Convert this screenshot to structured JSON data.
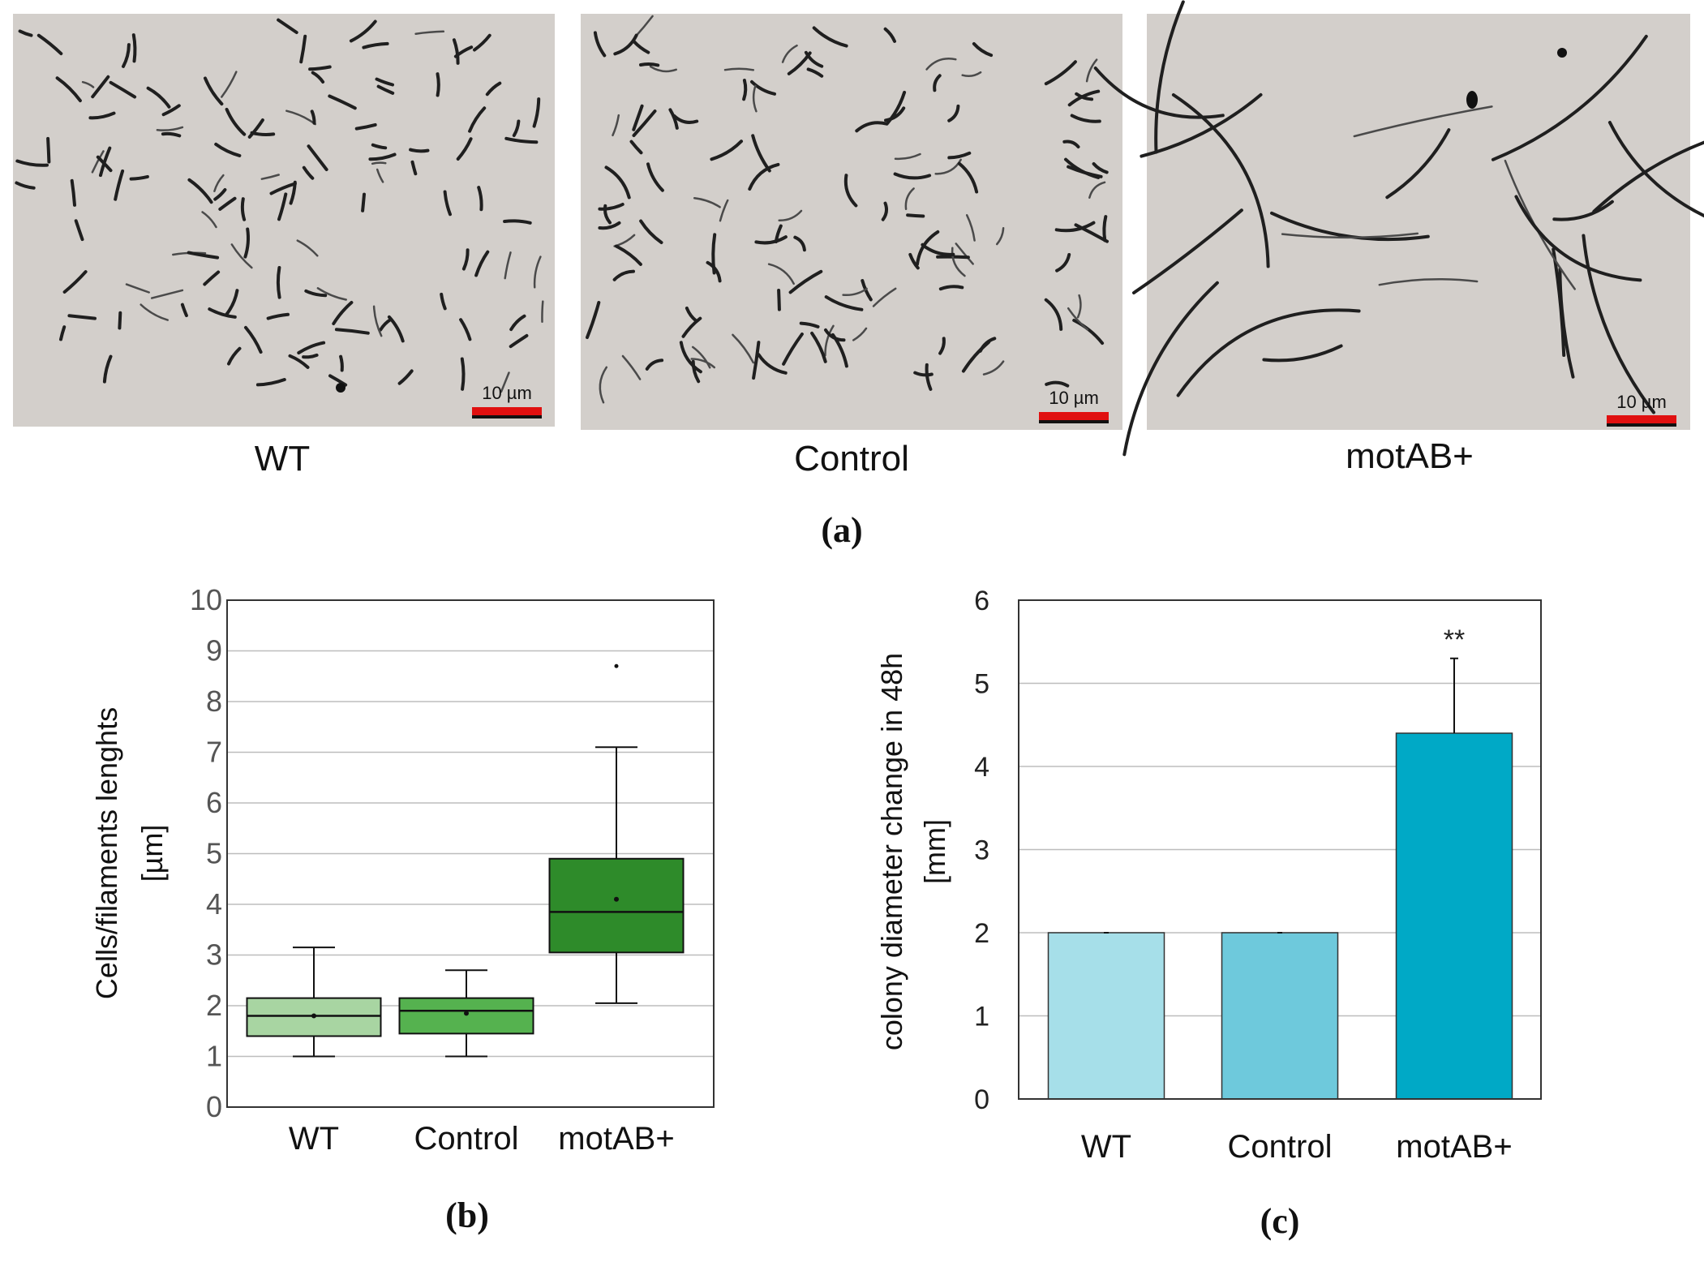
{
  "panel_a": {
    "label": "(a)",
    "images": [
      {
        "strain": "WT",
        "scale_bar": "10 µm"
      },
      {
        "strain": "Control",
        "scale_bar": "10 µm"
      },
      {
        "strain": "motAB+",
        "scale_bar": "10 µm"
      }
    ],
    "colors": {
      "background": "#d3cfcb",
      "cells": "#1f1f1f",
      "scale_bar": "#e01010"
    }
  },
  "chart_data": [
    {
      "panel": "(b)",
      "type": "box",
      "ylabel_line1": "Cells/filaments lenghts",
      "ylabel_line2": "[µm]",
      "ylim": [
        0,
        10
      ],
      "yticks": [
        0,
        1,
        2,
        3,
        4,
        5,
        6,
        7,
        8,
        9,
        10
      ],
      "grid": true,
      "categories": [
        "WT",
        "Control",
        "motAB+"
      ],
      "boxes": [
        {
          "name": "WT",
          "min": 1.0,
          "q1": 1.4,
          "median": 1.8,
          "q3": 2.15,
          "max": 3.15,
          "mean": 1.8,
          "outliers": [],
          "color": "#a8d5a2"
        },
        {
          "name": "Control",
          "min": 1.0,
          "q1": 1.45,
          "median": 1.9,
          "q3": 2.15,
          "max": 2.7,
          "mean": 1.85,
          "outliers": [],
          "color": "#55b24f"
        },
        {
          "name": "motAB+",
          "min": 2.05,
          "q1": 3.05,
          "median": 3.85,
          "q3": 4.9,
          "max": 7.1,
          "mean": 4.1,
          "outliers": [
            8.7
          ],
          "color": "#2e8b2a"
        }
      ]
    },
    {
      "panel": "(c)",
      "type": "bar",
      "ylabel_line1": "colony diameter change in 48h",
      "ylabel_line2": "[mm]",
      "ylim": [
        0,
        6
      ],
      "yticks": [
        0,
        1,
        2,
        3,
        4,
        5,
        6
      ],
      "grid": true,
      "categories": [
        "WT",
        "Control",
        "motAB+"
      ],
      "values": [
        2.0,
        2.0,
        4.4
      ],
      "errors": [
        0,
        0,
        0.9
      ],
      "annotations": [
        "",
        "",
        "**"
      ],
      "colors": [
        "#a6dfe9",
        "#6ec9dc",
        "#00a9c6"
      ]
    }
  ]
}
